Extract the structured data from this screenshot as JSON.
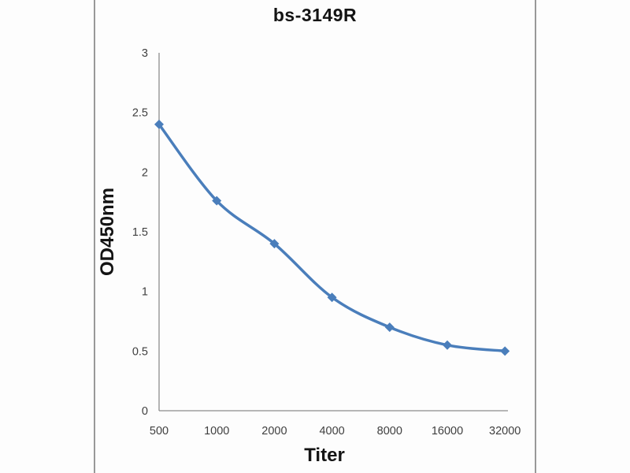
{
  "chart_data": {
    "type": "line",
    "title": "bs-3149R",
    "xlabel": "Titer",
    "ylabel": "OD450nm",
    "categories": [
      "500",
      "1000",
      "2000",
      "4000",
      "8000",
      "16000",
      "32000"
    ],
    "series": [
      {
        "name": "bs-3149R",
        "values": [
          2.4,
          1.76,
          1.4,
          0.95,
          0.7,
          0.55,
          0.5
        ]
      }
    ],
    "ylim": [
      0,
      3
    ],
    "yticks": [
      "3",
      "2.5",
      "2",
      "1.5",
      "1",
      "0.5",
      "0"
    ],
    "line_color": "#4A7EBB",
    "marker": "diamond",
    "axis_color": "#8C8C8C",
    "tick_label_color": "#3F3F3F",
    "grid": false,
    "legend": "none",
    "line_style": "smooth"
  }
}
